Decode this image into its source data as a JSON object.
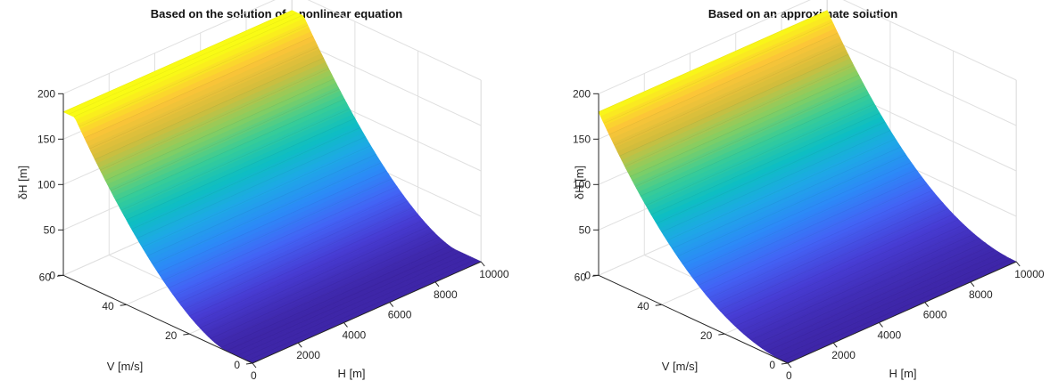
{
  "colors": {
    "axis": "#262626",
    "grid": "#e0e0e0",
    "title": "#111111"
  },
  "chart_data": [
    {
      "type": "surface",
      "title": "Based on the solution of a nonlinear equation",
      "xlabel": "H [m]",
      "ylabel": "V [m/s]",
      "zlabel": "δH [m]",
      "xlim": [
        0,
        10000
      ],
      "ylim": [
        0,
        60
      ],
      "zlim": [
        0,
        200
      ],
      "xticks": [
        "0",
        "2000",
        "4000",
        "6000",
        "8000",
        "10000"
      ],
      "yticks": [
        "0",
        "20",
        "40",
        "60"
      ],
      "zticks": [
        "0",
        "50",
        "100",
        "150",
        "200"
      ],
      "grid": true,
      "colormap": "parula",
      "model": "nonlinear",
      "v_threshold": 8,
      "v_saturation": 57,
      "z_max": 180,
      "surface_profile": [
        {
          "V": 0,
          "dH": 0
        },
        {
          "V": 8,
          "dH": 2
        },
        {
          "V": 10,
          "dH": 6
        },
        {
          "V": 20,
          "dH": 32
        },
        {
          "V": 30,
          "dH": 72
        },
        {
          "V": 40,
          "dH": 118
        },
        {
          "V": 50,
          "dH": 160
        },
        {
          "V": 57,
          "dH": 180
        },
        {
          "V": 60,
          "dH": 180
        }
      ]
    },
    {
      "type": "surface",
      "title": "Based on an approximate solution",
      "xlabel": "H [m]",
      "ylabel": "V [m/s]",
      "zlabel": "δH [m]",
      "xlim": [
        0,
        10000
      ],
      "ylim": [
        0,
        60
      ],
      "zlim": [
        0,
        200
      ],
      "xticks": [
        "0",
        "2000",
        "4000",
        "6000",
        "8000",
        "10000"
      ],
      "yticks": [
        "0",
        "20",
        "40",
        "60"
      ],
      "zticks": [
        "0",
        "50",
        "100",
        "150",
        "200"
      ],
      "grid": true,
      "colormap": "parula",
      "model": "quadratic",
      "z_max": 180,
      "surface_profile": [
        {
          "V": 0,
          "dH": 0
        },
        {
          "V": 10,
          "dH": 5
        },
        {
          "V": 20,
          "dH": 20
        },
        {
          "V": 30,
          "dH": 45
        },
        {
          "V": 40,
          "dH": 80
        },
        {
          "V": 50,
          "dH": 125
        },
        {
          "V": 60,
          "dH": 180
        }
      ]
    }
  ]
}
